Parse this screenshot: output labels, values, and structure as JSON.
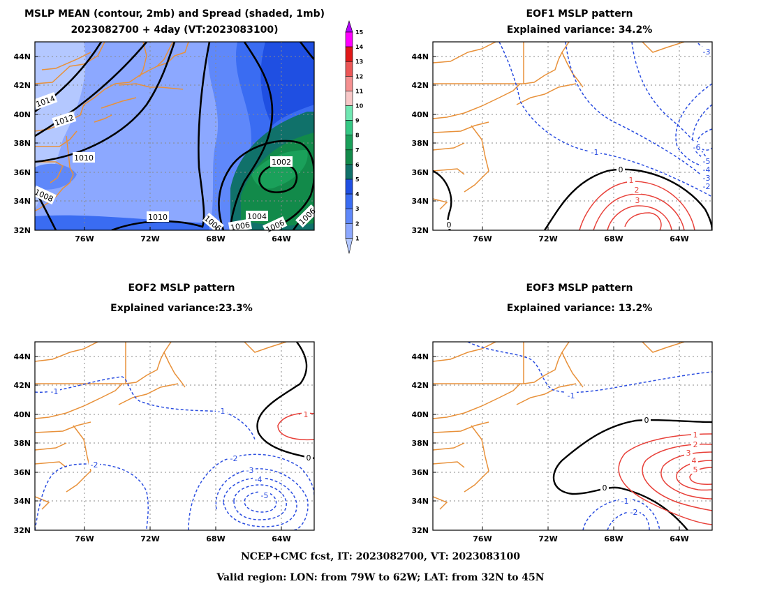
{
  "colors": {
    "coast": "#e8913a",
    "grid": "#8a8a8a",
    "mean_contour": "#000000",
    "neg_contour": "#2a4de0",
    "pos_contour": "#e8413a",
    "zero_contour": "#000000",
    "label_box": "#ffffff"
  },
  "lat_ticks": [
    "44N",
    "42N",
    "40N",
    "38N",
    "36N",
    "34N",
    "32N"
  ],
  "lon_ticks": [
    "76W",
    "72W",
    "68W",
    "64W"
  ],
  "colorbar": {
    "levels": [
      "1",
      "2",
      "3",
      "4",
      "5",
      "6",
      "7",
      "8",
      "9",
      "10",
      "11",
      "12",
      "13",
      "14",
      "15"
    ],
    "colors": [
      "#b4c8ff",
      "#8ca8ff",
      "#5f88fa",
      "#3a6cf2",
      "#1f4fe2",
      "#10716a",
      "#128a4a",
      "#1aa05a",
      "#35c884",
      "#6fe7b2",
      "#f8c8c8",
      "#f59090",
      "#ec5656",
      "#e01818",
      "#ff00ff",
      "#b400ff"
    ]
  },
  "panels": {
    "mean": {
      "title_line1": "MSLP MEAN (contour, 2mb) and Spread (shaded, 1mb)",
      "title_line2": "2023082700 + 4day (VT:2023083100)",
      "labels": [
        "1014",
        "1012",
        "1010",
        "1008",
        "1010",
        "1002",
        "1004",
        "1006",
        "1006",
        "1006",
        "1006"
      ]
    },
    "eof1": {
      "title_line1": "EOF1 MSLP pattern",
      "title_line2": "Explained variance: 34.2%",
      "labels": [
        "-3",
        "-1",
        "0",
        "1",
        "2",
        "3",
        "-6",
        "-5",
        "-4",
        "-3",
        "-2",
        "0"
      ]
    },
    "eof2": {
      "title_line1": "EOF2 MSLP pattern",
      "title_line2": "Explained variance:23.3%",
      "labels": [
        "-1",
        "-1",
        "-2",
        "-2",
        "-3",
        "-4",
        "-5",
        "1",
        "0"
      ]
    },
    "eof3": {
      "title_line1": "EOF3 MSLP pattern",
      "title_line2": "Explained variance: 13.2%",
      "labels": [
        "-1",
        "0",
        "0",
        "1",
        "2",
        "3",
        "4",
        "5",
        "-1",
        "-2"
      ]
    }
  },
  "footer": {
    "line1": "NCEP+CMC fcst, IT: 2023082700, VT: 2023083100",
    "line2": "Valid region: LON: from 79W to 62W; LAT: from 32N to 45N"
  }
}
